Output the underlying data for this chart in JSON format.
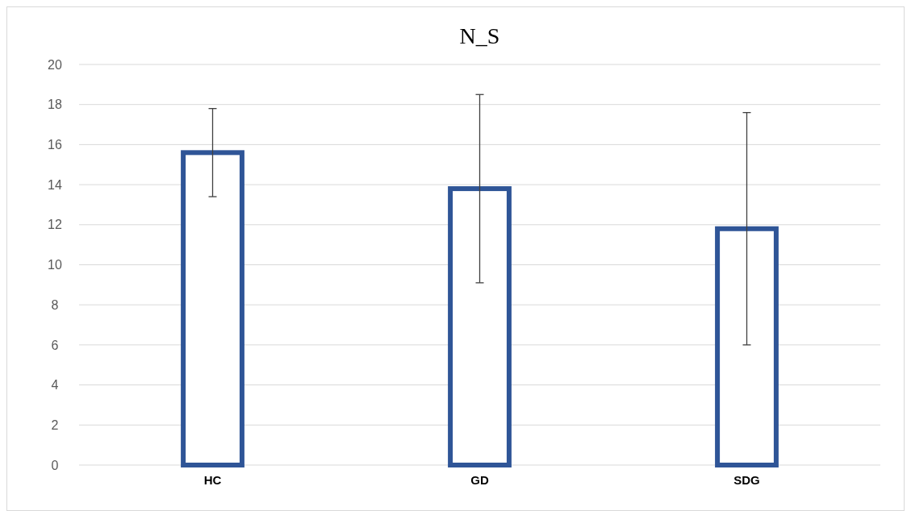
{
  "chart_data": {
    "type": "bar",
    "title": "N_S",
    "categories": [
      "HC",
      "GD",
      "SDG"
    ],
    "values": [
      15.6,
      13.8,
      11.8
    ],
    "errors": [
      2.2,
      4.7,
      5.8
    ],
    "color": "#2f5597",
    "ylim": [
      0,
      20
    ],
    "yticks": [
      0,
      2,
      4,
      6,
      8,
      10,
      12,
      14,
      16,
      18,
      20
    ],
    "grid": "y"
  }
}
